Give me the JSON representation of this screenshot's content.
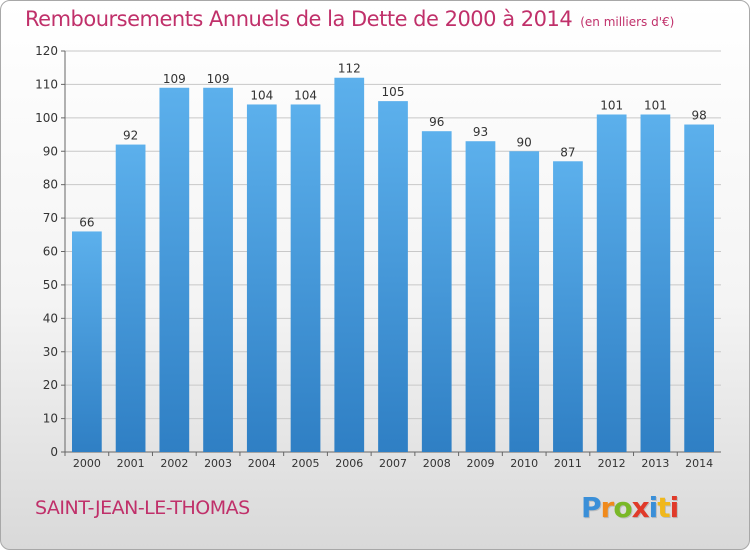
{
  "title": "Remboursements Annuels de la Dette de 2000 à 2014",
  "unit_note": "(en milliers d'€)",
  "commune": "SAINT-JEAN-LE-THOMAS",
  "logo": {
    "text": "Proxiti",
    "letter_colors": [
      "#3a8fd8",
      "#f08a1c",
      "#7ab828",
      "#e03a2a",
      "#3a8fd8",
      "#f0b81c",
      "#e03a2a"
    ]
  },
  "colors": {
    "accent": "#c0306a",
    "bar_top": "#5cb0ec",
    "bar_bottom": "#2f7fc4",
    "grid": "#c8c8c8"
  },
  "chart_data": {
    "type": "bar",
    "categories": [
      "2000",
      "2001",
      "2002",
      "2003",
      "2004",
      "2005",
      "2006",
      "2007",
      "2008",
      "2009",
      "2010",
      "2011",
      "2012",
      "2013",
      "2014"
    ],
    "values": [
      66,
      92,
      109,
      109,
      104,
      104,
      112,
      105,
      96,
      93,
      90,
      87,
      101,
      101,
      98
    ],
    "ylim": [
      0,
      120
    ],
    "yticks": [
      0,
      10,
      20,
      30,
      40,
      50,
      60,
      70,
      80,
      90,
      100,
      110,
      120
    ],
    "grid": true,
    "data_labels": true
  }
}
